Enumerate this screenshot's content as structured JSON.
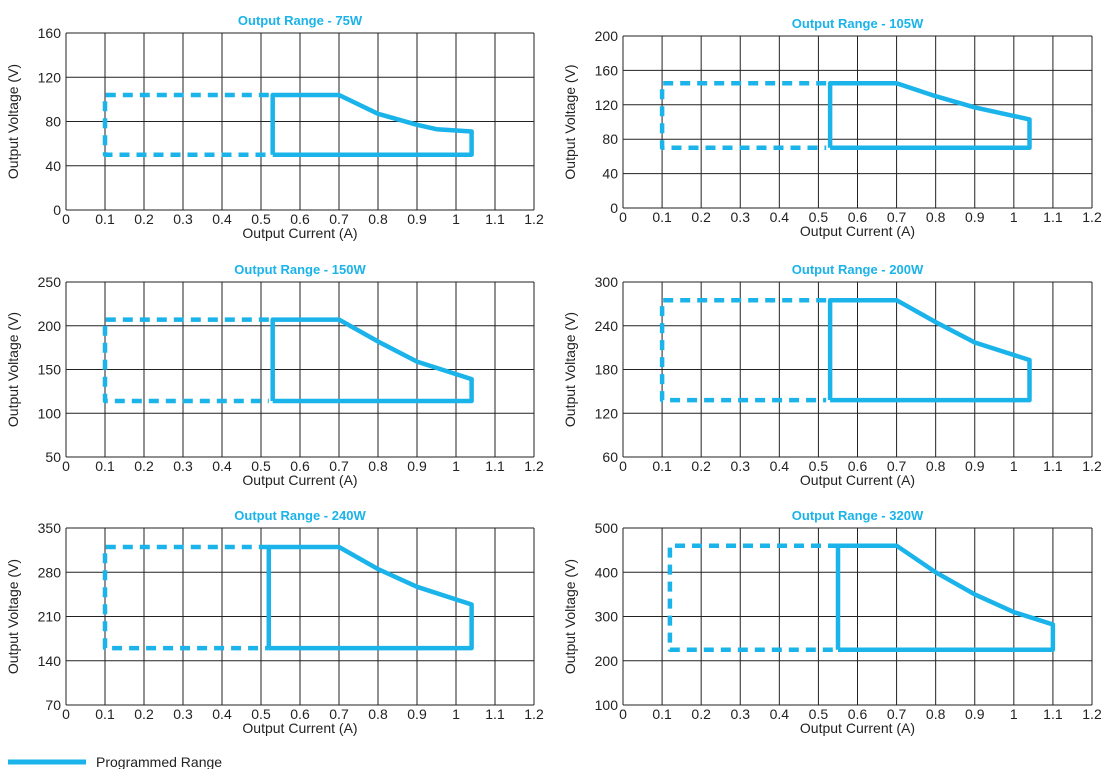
{
  "colors": {
    "accent": "#1ab3ea",
    "grid": "#222222",
    "text": "#222222"
  },
  "legend": {
    "label": "Programmed Range"
  },
  "chart_data": [
    {
      "type": "line",
      "title": "Output Range - 75W",
      "xlabel": "Output Current (A)",
      "ylabel": "Output Voltage (V)",
      "xlim": [
        0,
        1.2
      ],
      "ylim": [
        0,
        160
      ],
      "xticks": [
        0,
        0.1,
        0.2,
        0.3,
        0.4,
        0.5,
        0.6,
        0.7,
        0.8,
        0.9,
        1,
        1.1,
        1.2
      ],
      "yticks": [
        0,
        40,
        80,
        120,
        160
      ],
      "grid": true,
      "series": [
        {
          "style": "dashed",
          "x": [
            0.52,
            0.1,
            0.1,
            0.52
          ],
          "y": [
            104,
            104,
            50,
            50
          ]
        },
        {
          "style": "solid",
          "x": [
            0.53,
            0.53,
            0.7,
            0.8,
            0.9,
            0.95,
            1.04,
            1.04,
            0.53
          ],
          "y": [
            50,
            104,
            104,
            87,
            77,
            73,
            71,
            50,
            50
          ]
        }
      ]
    },
    {
      "type": "line",
      "title": "Output Range - 105W",
      "xlabel": "Output Current (A)",
      "ylabel": "Output Voltage (V)",
      "xlim": [
        0,
        1.2
      ],
      "ylim": [
        0,
        200
      ],
      "xticks": [
        0,
        0.1,
        0.2,
        0.3,
        0.4,
        0.5,
        0.6,
        0.7,
        0.8,
        0.9,
        1,
        1.1,
        1.2
      ],
      "yticks": [
        0,
        40,
        80,
        120,
        160,
        200
      ],
      "grid": true,
      "series": [
        {
          "style": "dashed",
          "x": [
            0.52,
            0.1,
            0.1,
            0.52
          ],
          "y": [
            145,
            145,
            70,
            70
          ]
        },
        {
          "style": "solid",
          "x": [
            0.53,
            0.53,
            0.7,
            0.8,
            0.9,
            1.04,
            1.04,
            0.53
          ],
          "y": [
            70,
            145,
            145,
            130,
            117,
            103,
            70,
            70
          ]
        }
      ]
    },
    {
      "type": "line",
      "title": "Output Range - 150W",
      "xlabel": "Output Current (A)",
      "ylabel": "Output Voltage (V)",
      "xlim": [
        0,
        1.2
      ],
      "ylim": [
        50,
        250
      ],
      "xticks": [
        0,
        0.1,
        0.2,
        0.3,
        0.4,
        0.5,
        0.6,
        0.7,
        0.8,
        0.9,
        1,
        1.1,
        1.2
      ],
      "yticks": [
        50,
        100,
        150,
        200,
        250
      ],
      "grid": true,
      "series": [
        {
          "style": "dashed",
          "x": [
            0.52,
            0.1,
            0.1,
            0.52
          ],
          "y": [
            207,
            207,
            114,
            114
          ]
        },
        {
          "style": "solid",
          "x": [
            0.53,
            0.53,
            0.7,
            0.8,
            0.9,
            1.04,
            1.04,
            0.53
          ],
          "y": [
            114,
            207,
            207,
            182,
            159,
            139,
            114,
            114
          ]
        }
      ]
    },
    {
      "type": "line",
      "title": "Output Range - 200W",
      "xlabel": "Output Current (A)",
      "ylabel": "Output Voltage (V)",
      "xlim": [
        0,
        1.2
      ],
      "ylim": [
        60,
        300
      ],
      "xticks": [
        0,
        0.1,
        0.2,
        0.3,
        0.4,
        0.5,
        0.6,
        0.7,
        0.8,
        0.9,
        1,
        1.1,
        1.2
      ],
      "yticks": [
        60,
        120,
        180,
        240,
        300
      ],
      "grid": true,
      "series": [
        {
          "style": "dashed",
          "x": [
            0.52,
            0.1,
            0.1,
            0.52
          ],
          "y": [
            275,
            275,
            138,
            138
          ]
        },
        {
          "style": "solid",
          "x": [
            0.53,
            0.53,
            0.7,
            0.8,
            0.9,
            1.04,
            1.04,
            0.53
          ],
          "y": [
            138,
            275,
            275,
            245,
            217,
            193,
            138,
            138
          ]
        }
      ]
    },
    {
      "type": "line",
      "title": "Output Range - 240W",
      "xlabel": "Output Current (A)",
      "ylabel": "Output Voltage (V)",
      "xlim": [
        0,
        1.2
      ],
      "ylim": [
        70,
        350
      ],
      "xticks": [
        0,
        0.1,
        0.2,
        0.3,
        0.4,
        0.5,
        0.6,
        0.7,
        0.8,
        0.9,
        1,
        1.1,
        1.2
      ],
      "yticks": [
        70,
        140,
        210,
        280,
        350
      ],
      "grid": true,
      "series": [
        {
          "style": "dashed",
          "x": [
            0.52,
            0.1,
            0.1,
            0.52
          ],
          "y": [
            320,
            320,
            160,
            160
          ]
        },
        {
          "style": "solid",
          "x": [
            0.52,
            0.52,
            0.7,
            0.8,
            0.9,
            1.04,
            1.04,
            0.52
          ],
          "y": [
            160,
            320,
            320,
            285,
            257,
            229,
            160,
            160
          ]
        }
      ]
    },
    {
      "type": "line",
      "title": "Output Range - 320W",
      "xlabel": "Output Current (A)",
      "ylabel": "Output Voltage (V)",
      "xlim": [
        0,
        1.2
      ],
      "ylim": [
        100,
        500
      ],
      "xticks": [
        0,
        0.1,
        0.2,
        0.3,
        0.4,
        0.5,
        0.6,
        0.7,
        0.8,
        0.9,
        1,
        1.1,
        1.2
      ],
      "yticks": [
        100,
        200,
        300,
        400,
        500
      ],
      "grid": true,
      "series": [
        {
          "style": "dashed",
          "x": [
            0.55,
            0.12,
            0.12,
            0.55
          ],
          "y": [
            460,
            460,
            225,
            225
          ]
        },
        {
          "style": "solid",
          "x": [
            0.55,
            0.55,
            0.7,
            0.8,
            0.9,
            1.0,
            1.1,
            1.1,
            0.55
          ],
          "y": [
            225,
            460,
            460,
            400,
            350,
            310,
            282,
            225,
            225
          ]
        }
      ]
    }
  ]
}
